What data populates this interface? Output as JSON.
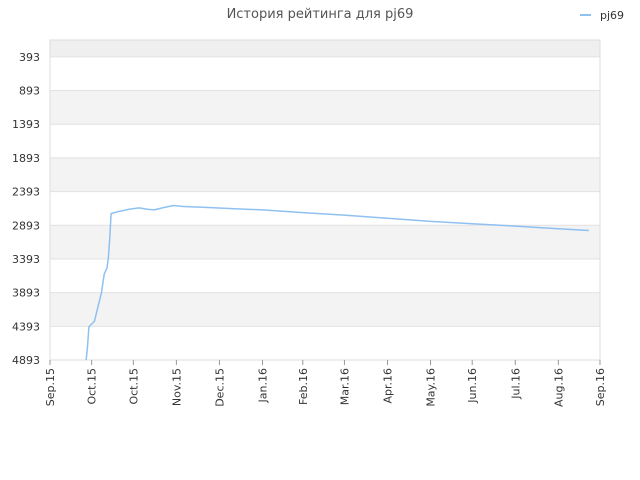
{
  "chart_data": {
    "type": "line",
    "title": "История рейтинга для pj69",
    "xlabel": "",
    "ylabel": "",
    "legend": {
      "position": "top-right"
    },
    "grid": true,
    "y_inverted": true,
    "ylim": [
      143,
      4893
    ],
    "y_ticks": [
      "393",
      "893",
      "1393",
      "1893",
      "2393",
      "2893",
      "3393",
      "3893",
      "4393",
      "4893"
    ],
    "y_tick_values": [
      393,
      893,
      1393,
      1893,
      2393,
      2893,
      3393,
      3893,
      4393,
      4893
    ],
    "x_ticks": [
      "Sep.15",
      "Oct.15",
      "Oct.15",
      "Nov.15",
      "Dec.15",
      "Jan.16",
      "Feb.16",
      "Mar.16",
      "Apr.16",
      "May.16",
      "Jun.16",
      "Jul.16",
      "Aug.16",
      "Sep.16"
    ],
    "x_tick_dates": [
      "2015-09-01",
      "2015-10-01",
      "2015-10-31",
      "2015-12-01",
      "2016-01-01",
      "2016-02-01",
      "2016-03-01",
      "2016-03-31",
      "2016-05-01",
      "2016-06-01",
      "2016-07-01",
      "2016-08-01",
      "2016-09-01",
      "2016-10-01"
    ],
    "series": [
      {
        "name": "pj69",
        "color": "#8ec1f0",
        "points": [
          {
            "x": "2015-09-27",
            "y": 4893
          },
          {
            "x": "2015-09-28",
            "y": 4700
          },
          {
            "x": "2015-09-29",
            "y": 4400
          },
          {
            "x": "2015-10-03",
            "y": 4320
          },
          {
            "x": "2015-10-05",
            "y": 4150
          },
          {
            "x": "2015-10-08",
            "y": 3900
          },
          {
            "x": "2015-10-10",
            "y": 3620
          },
          {
            "x": "2015-10-12",
            "y": 3530
          },
          {
            "x": "2015-10-13",
            "y": 3390
          },
          {
            "x": "2015-10-14",
            "y": 3100
          },
          {
            "x": "2015-10-15",
            "y": 2720
          },
          {
            "x": "2015-10-20",
            "y": 2690
          },
          {
            "x": "2015-10-28",
            "y": 2655
          },
          {
            "x": "2015-11-04",
            "y": 2635
          },
          {
            "x": "2015-11-10",
            "y": 2655
          },
          {
            "x": "2015-11-15",
            "y": 2665
          },
          {
            "x": "2015-11-22",
            "y": 2630
          },
          {
            "x": "2015-11-29",
            "y": 2600
          },
          {
            "x": "2015-12-06",
            "y": 2615
          },
          {
            "x": "2015-12-20",
            "y": 2625
          },
          {
            "x": "2016-01-10",
            "y": 2645
          },
          {
            "x": "2016-02-01",
            "y": 2665
          },
          {
            "x": "2016-03-01",
            "y": 2705
          },
          {
            "x": "2016-04-01",
            "y": 2745
          },
          {
            "x": "2016-05-01",
            "y": 2790
          },
          {
            "x": "2016-06-01",
            "y": 2835
          },
          {
            "x": "2016-07-01",
            "y": 2870
          },
          {
            "x": "2016-08-01",
            "y": 2905
          },
          {
            "x": "2016-09-01",
            "y": 2945
          },
          {
            "x": "2016-09-23",
            "y": 2970
          }
        ]
      }
    ]
  }
}
